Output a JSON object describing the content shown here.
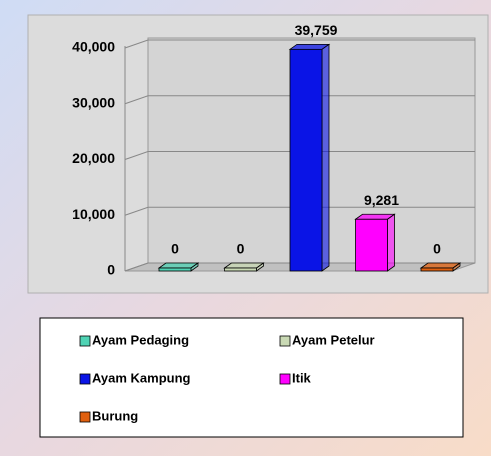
{
  "chart_data": {
    "type": "bar",
    "categories": [
      "Ayam Pedaging",
      "Ayam Petelur",
      "Ayam Kampung",
      "Itik",
      "Burung"
    ],
    "values": [
      0,
      0,
      39759,
      9281,
      0
    ],
    "value_labels": [
      "0",
      "0",
      "39,759",
      "9,281",
      "0"
    ],
    "colors": [
      "#4fd3b4",
      "#c9d9b4",
      "#0a14e6",
      "#ff00ff",
      "#e0600f"
    ],
    "ylim": [
      0,
      40000
    ],
    "yticks": [
      0,
      {
        "value": 10000,
        "label": "10,000"
      },
      {
        "value": 20000,
        "label": "20,000"
      },
      {
        "value": 30000,
        "label": "30,000"
      },
      {
        "value": 40000,
        "label": "40,000"
      }
    ],
    "grid": true
  }
}
